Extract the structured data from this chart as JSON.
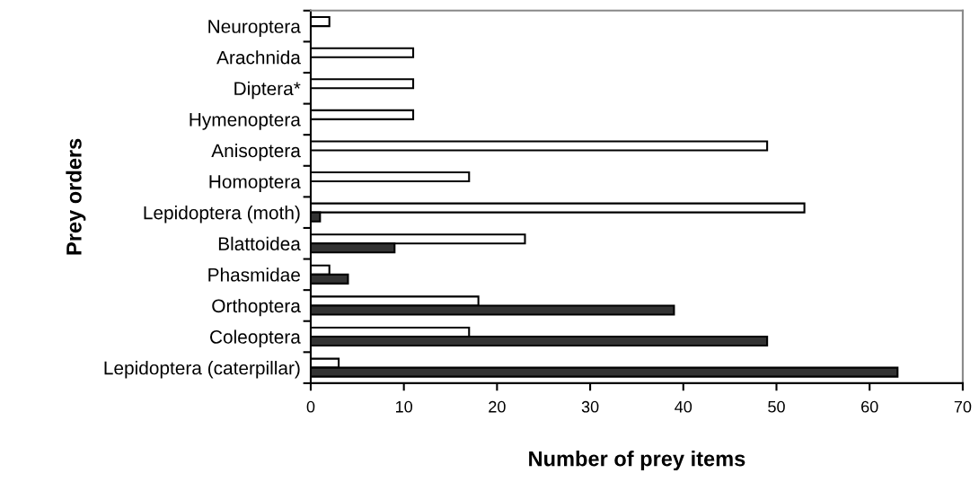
{
  "chart_data": {
    "type": "bar",
    "orientation": "horizontal",
    "xlabel": "Number of prey items",
    "ylabel": "Prey orders",
    "categories": [
      "Neuroptera",
      "Arachnida",
      "Diptera*",
      "Hymenoptera",
      "Anisoptera",
      "Homoptera",
      "Lepidoptera (moth)",
      "Blattoidea",
      "Phasmidae",
      "Orthoptera",
      "Coleoptera",
      "Lepidoptera (caterpillar)"
    ],
    "series": [
      {
        "color": "#ffffff",
        "values": [
          2,
          11,
          11,
          11,
          49,
          17,
          53,
          23,
          2,
          18,
          17,
          3
        ]
      },
      {
        "color": "#333333",
        "values": [
          null,
          null,
          null,
          null,
          null,
          null,
          1,
          9,
          4,
          39,
          49,
          63
        ]
      }
    ],
    "xlim": [
      0,
      70
    ],
    "xticks": [
      0,
      10,
      20,
      30,
      40,
      50,
      60,
      70
    ],
    "grid": false,
    "legend": false
  }
}
